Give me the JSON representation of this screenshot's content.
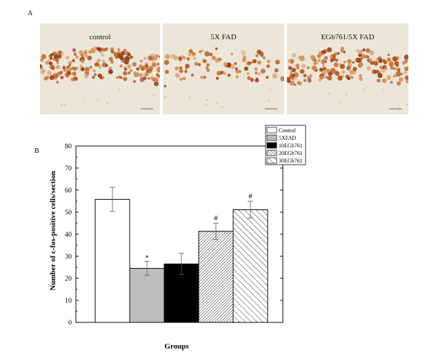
{
  "panel_a": {
    "label": "A",
    "images": [
      {
        "caption": "control",
        "cell_density": 1.0
      },
      {
        "caption": "5X FAD",
        "cell_density": 0.45
      },
      {
        "caption": "EGb761/5X FAD",
        "cell_density": 0.85
      }
    ]
  },
  "chart_data": {
    "panel_label": "B",
    "type": "bar",
    "title": "",
    "xlabel": "Groups",
    "ylabel": "Number of c-fos-positive cells/section",
    "ylim": [
      0,
      80
    ],
    "yticks": [
      0,
      10,
      20,
      30,
      40,
      50,
      60,
      70,
      80
    ],
    "categories": [
      "Control",
      "5XFAD",
      "10EGb761",
      "20EGb761",
      "30EGb761"
    ],
    "values": [
      55.8,
      24.5,
      26.5,
      41.3,
      51.1
    ],
    "errors": [
      5.5,
      3.2,
      4.8,
      3.7,
      3.9
    ],
    "annotations": [
      "",
      "*",
      "",
      "#",
      "#"
    ],
    "legend_placement": "top-right",
    "fills": [
      "white",
      "gray",
      "black",
      "dense-hatch",
      "sparse-hatch"
    ],
    "colors": {
      "gray": "#bdbdbd",
      "black": "#000000",
      "edge": "#000000"
    }
  }
}
